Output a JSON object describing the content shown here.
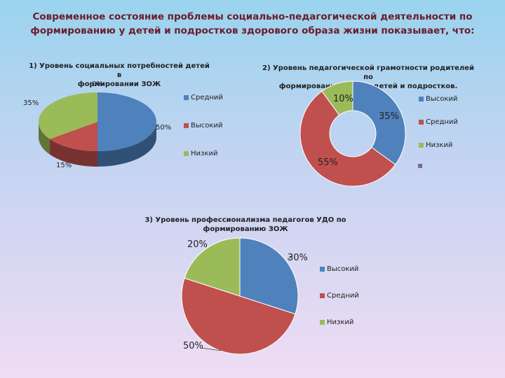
{
  "page": {
    "title_line1": "Современное состояние проблемы социально-педагогической деятельности по",
    "title_line2": "формированию у детей и подростков здорового образа жизни показывает, что:"
  },
  "colors": {
    "blue": "#4f81bd",
    "red": "#c0504d",
    "green": "#9bbb59",
    "purple": "#8064a2"
  },
  "chart_data": [
    {
      "type": "pie",
      "title_line1": "1) Уровень социальных потребностей детей в",
      "title_line2": "формировании ЗОЖ",
      "extra_label": "0%",
      "categories": [
        "Средний",
        "Высокий",
        "Низкий"
      ],
      "values": [
        50,
        15,
        35
      ],
      "value_labels": [
        "50%",
        "15%",
        "35%"
      ],
      "legend": [
        "Средний",
        "Высокий",
        "Низкий"
      ]
    },
    {
      "type": "pie",
      "title_line1": "2) Уровень педагогической грамотности родителей по",
      "title_line2": "формированию ЗОЖ у детей и подростков.",
      "categories": [
        "Высокий",
        "Средний",
        "Низкий"
      ],
      "values": [
        35,
        55,
        10
      ],
      "value_labels": [
        "35%",
        "55%",
        "10%"
      ],
      "legend": [
        "Высокий",
        "Средний",
        "Низкий"
      ]
    },
    {
      "type": "pie",
      "title_line1": "3) Уровень профессионализма педагогов УДО по",
      "title_line2": "формированию ЗОЖ",
      "categories": [
        "Высокий",
        "Средний",
        "Низкий"
      ],
      "values": [
        30,
        50,
        20
      ],
      "value_labels": [
        "30%",
        "50%",
        "20%"
      ],
      "legend": [
        "Высокий",
        "Средний",
        "Низкий"
      ]
    }
  ]
}
